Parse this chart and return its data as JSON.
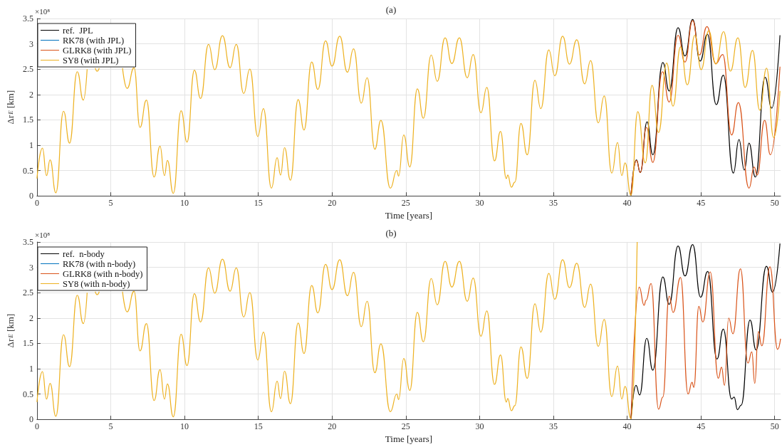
{
  "chart_data": [
    {
      "type": "line",
      "title": "(a)",
      "xlabel": "Time [years]",
      "ylabel": "Δr$_{E}$ [km]",
      "annotations": [
        "×10⁸"
      ],
      "xlim": [
        0,
        50.4
      ],
      "xticks": [
        0,
        5,
        10,
        15,
        20,
        25,
        30,
        35,
        40,
        45,
        50
      ],
      "ylim": [
        0,
        3.5
      ],
      "yticks": [
        0,
        0.5,
        1,
        1.5,
        2,
        2.5,
        3,
        3.5
      ],
      "grid": true,
      "legend": "top left",
      "series": [
        {
          "name": "ref.  JPL",
          "color": "#000000",
          "x": [
            40.26,
            40.63,
            40.89,
            41.35,
            41.74,
            42.42,
            42.85,
            43.45,
            43.92,
            44.44,
            44.95,
            45.44,
            46.04,
            46.52,
            47.2,
            47.58,
            47.94,
            48.26,
            48.69,
            49.35,
            49.8,
            50.36
          ],
          "values": [
            0.01,
            0.71,
            0.46,
            1.46,
            0.81,
            2.63,
            2.07,
            3.32,
            2.76,
            3.48,
            2.66,
            3.19,
            1.8,
            2.38,
            0.45,
            1.11,
            0.51,
            1.04,
            0.37,
            2.34,
            1.73,
            3.17
          ]
        },
        {
          "name": "RK78 (with JPL)",
          "color": "#0072bd"
        },
        {
          "name": "GLRK8 (with JPL)",
          "color": "#d95319",
          "x": [
            40.26,
            40.63,
            40.89,
            41.31,
            41.74,
            42.39,
            42.85,
            43.45,
            43.92,
            44.44,
            44.9,
            45.41,
            46.01,
            46.48,
            47.08,
            47.54,
            48.26,
            48.61,
            48.81,
            49.32,
            49.71,
            50.36
          ],
          "values": [
            0.01,
            0.7,
            0.46,
            1.35,
            0.66,
            2.45,
            1.85,
            3.17,
            2.64,
            3.46,
            2.78,
            3.34,
            2.61,
            2.79,
            1.2,
            1.84,
            0.15,
            0.57,
            0.41,
            1.49,
            0.81,
            2.55
          ]
        },
        {
          "name": "SY8 (with JPL)",
          "color": "#edb120",
          "x": [
            0,
            0.37,
            0.65,
            0.89,
            1.28,
            1.8,
            2.21,
            2.73,
            3.14,
            3.4,
            3.6,
            3.95,
            4.08,
            4.22,
            5.0,
            5.8,
            6.11,
            6.58,
            6.98,
            7.42,
            7.94,
            8.34,
            8.64,
            8.84,
            9.24,
            9.77,
            10.17,
            10.67,
            11.09,
            11.63,
            12.05,
            12.57,
            13.09,
            13.51,
            14.01,
            14.43,
            14.97,
            15.35,
            15.89,
            16.28,
            16.51,
            16.78,
            17.18,
            17.7,
            18.1,
            18.62,
            19.04,
            19.56,
            20.0,
            20.52,
            21.04,
            21.46,
            21.98,
            22.38,
            22.9,
            23.31,
            23.95,
            24.39,
            24.51,
            24.86,
            25.27,
            25.78,
            26.19,
            26.72,
            27.13,
            27.66,
            28.12,
            28.63,
            29.16,
            29.57,
            30.09,
            30.49,
            31.01,
            31.42,
            31.81,
            31.91,
            32.15,
            32.39,
            32.8,
            33.23,
            33.75,
            34.15,
            34.69,
            35.1,
            35.63,
            36.09,
            36.59,
            37.12,
            37.53,
            38.04,
            38.45,
            38.96,
            39.35,
            39.64,
            39.86,
            40.26,
            40.72,
            41.23,
            41.69,
            42.13,
            42.68,
            43.11,
            43.62,
            44.08,
            44.59,
            45.02,
            45.53,
            46.01,
            46.54,
            47.0,
            47.51,
            48.0,
            48.5,
            48.99,
            49.45,
            49.93,
            50.36
          ],
          "values": [
            0.34,
            0.94,
            0.4,
            0.71,
            0.06,
            1.67,
            1.04,
            2.45,
            1.89,
            2.5,
            null,
            2.52,
            2.46,
            2.52,
            null,
            2.52,
            2.12,
            2.53,
            1.35,
            1.89,
            0.37,
            0.98,
            0.4,
            0.7,
            0.05,
            1.68,
            1.06,
            2.48,
            1.92,
            2.99,
            2.49,
            3.16,
            2.53,
            2.99,
            2.02,
            2.5,
            1.17,
            1.72,
            0.15,
            0.75,
            0.41,
            0.95,
            0.31,
            1.9,
            1.3,
            2.64,
            2.1,
            3.06,
            2.56,
            3.15,
            2.44,
            2.9,
            1.83,
            2.33,
            0.92,
            1.49,
            0.15,
            0.5,
            0.39,
            1.2,
            0.57,
            2.11,
            1.53,
            2.78,
            2.26,
            3.12,
            2.61,
            3.12,
            2.33,
            2.79,
            1.64,
            2.14,
            0.69,
            1.27,
            0.34,
            0.41,
            0.17,
            0.27,
            1.43,
            0.81,
            2.28,
            1.72,
            2.88,
            2.37,
            3.15,
            2.6,
            3.08,
            2.21,
            2.67,
            1.44,
            1.97,
            0.45,
            1.05,
            0.4,
            0.65,
            0.01,
            1.66,
            0.65,
            2.18,
            1.25,
            2.62,
            1.77,
            2.94,
            2.19,
            3.17,
            2.49,
            3.26,
            2.6,
            3.24,
            2.46,
            3.12,
            2.14,
            2.87,
            1.69,
            2.52,
            1.15,
            2.07
          ]
        }
      ]
    },
    {
      "type": "line",
      "title": "(b)",
      "xlabel": "Time [years]",
      "ylabel": "Δr$_{E}$ [km]",
      "annotations": [
        "×10⁸"
      ],
      "xlim": [
        0,
        50.4
      ],
      "xticks": [
        0,
        5,
        10,
        15,
        20,
        25,
        30,
        35,
        40,
        45,
        50
      ],
      "ylim": [
        0,
        3.5
      ],
      "yticks": [
        0,
        0.5,
        1,
        1.5,
        2,
        2.5,
        3,
        3.5
      ],
      "grid": true,
      "legend": "top left",
      "series": [
        {
          "name": "ref.  n-body",
          "color": "#000000",
          "x": [
            40.26,
            40.6,
            40.85,
            41.33,
            41.74,
            42.42,
            42.85,
            43.45,
            43.92,
            44.44,
            44.98,
            45.46,
            46.09,
            46.52,
            47.08,
            47.25,
            47.48,
            47.73,
            48.33,
            48.74,
            49.44,
            49.86,
            50.36
          ],
          "values": [
            0.01,
            0.67,
            0.48,
            1.6,
            0.97,
            2.81,
            2.27,
            3.42,
            2.83,
            3.45,
            2.41,
            2.92,
            1.19,
            1.78,
            0.4,
            0.44,
            0.19,
            0.28,
            1.96,
            1.37,
            3.02,
            2.51,
            3.47
          ]
        },
        {
          "name": "RK78 (with n-body)",
          "color": "#0072bd"
        },
        {
          "name": "GLRK8 (with n-body)",
          "color": "#d95319",
          "x": [
            40.26,
            40.82,
            41.15,
            41.28,
            41.62,
            42.13,
            42.42,
            42.85,
            43.12,
            43.62,
            44.13,
            44.4,
            44.52,
            44.86,
            45.13,
            45.63,
            46.18,
            46.4,
            46.6,
            46.88,
            47.17,
            47.68,
            48.19,
            48.45,
            48.65,
            48.89,
            49.13,
            49.68,
            50.2,
            50.4
          ],
          "values": [
            0.01,
            2.61,
            2.25,
            2.35,
            2.68,
            0.2,
            0.44,
            2.43,
            2.11,
            2.8,
            0.5,
            0.73,
            0.63,
            2.23,
            1.92,
            2.91,
            0.81,
            1.03,
            0.67,
            2.0,
            1.69,
            2.97,
            1.11,
            1.33,
            0.71,
            1.73,
            1.45,
            3.01,
            1.38,
            1.59
          ]
        },
        {
          "name": "SY8 (with n-body)",
          "color": "#edb120",
          "x": [
            0,
            0.37,
            0.65,
            0.89,
            1.28,
            1.8,
            2.21,
            2.73,
            3.14,
            3.4,
            3.6,
            3.95,
            4.08,
            4.22,
            5.0,
            5.8,
            6.11,
            6.58,
            6.98,
            7.42,
            7.94,
            8.34,
            8.64,
            8.84,
            9.24,
            9.77,
            10.17,
            10.67,
            11.09,
            11.63,
            12.05,
            12.57,
            13.09,
            13.51,
            14.01,
            14.43,
            14.97,
            15.35,
            15.89,
            16.28,
            16.51,
            16.78,
            17.18,
            17.7,
            18.1,
            18.62,
            19.04,
            19.56,
            20.0,
            20.52,
            21.04,
            21.46,
            21.98,
            22.38,
            22.9,
            23.31,
            23.95,
            24.39,
            24.51,
            24.86,
            25.27,
            25.78,
            26.19,
            26.72,
            27.13,
            27.66,
            28.12,
            28.63,
            29.16,
            29.57,
            30.09,
            30.49,
            31.01,
            31.42,
            31.81,
            31.91,
            32.15,
            32.39,
            32.8,
            33.23,
            33.75,
            34.15,
            34.69,
            35.1,
            35.63,
            36.09,
            36.59,
            37.12,
            37.53,
            38.04,
            38.45,
            38.96,
            39.35,
            39.64,
            39.86,
            40.26,
            40.68
          ],
          "values": [
            0.34,
            0.94,
            0.4,
            0.71,
            0.06,
            1.67,
            1.04,
            2.45,
            1.89,
            2.5,
            null,
            2.52,
            2.46,
            2.52,
            null,
            2.52,
            2.12,
            2.53,
            1.35,
            1.89,
            0.37,
            0.98,
            0.4,
            0.7,
            0.05,
            1.68,
            1.06,
            2.48,
            1.92,
            2.99,
            2.49,
            3.16,
            2.53,
            2.99,
            2.02,
            2.5,
            1.17,
            1.72,
            0.15,
            0.75,
            0.41,
            0.95,
            0.31,
            1.9,
            1.3,
            2.64,
            2.1,
            3.06,
            2.56,
            3.15,
            2.44,
            2.9,
            1.83,
            2.33,
            0.92,
            1.49,
            0.15,
            0.5,
            0.39,
            1.2,
            0.57,
            2.11,
            1.53,
            2.78,
            2.26,
            3.12,
            2.61,
            3.12,
            2.33,
            2.79,
            1.64,
            2.14,
            0.69,
            1.27,
            0.34,
            0.41,
            0.17,
            0.27,
            1.43,
            0.81,
            2.28,
            1.72,
            2.88,
            2.37,
            3.15,
            2.6,
            3.08,
            2.21,
            2.67,
            1.44,
            1.97,
            0.45,
            1.05,
            0.4,
            0.65,
            0.01,
            3.5
          ]
        }
      ]
    }
  ]
}
